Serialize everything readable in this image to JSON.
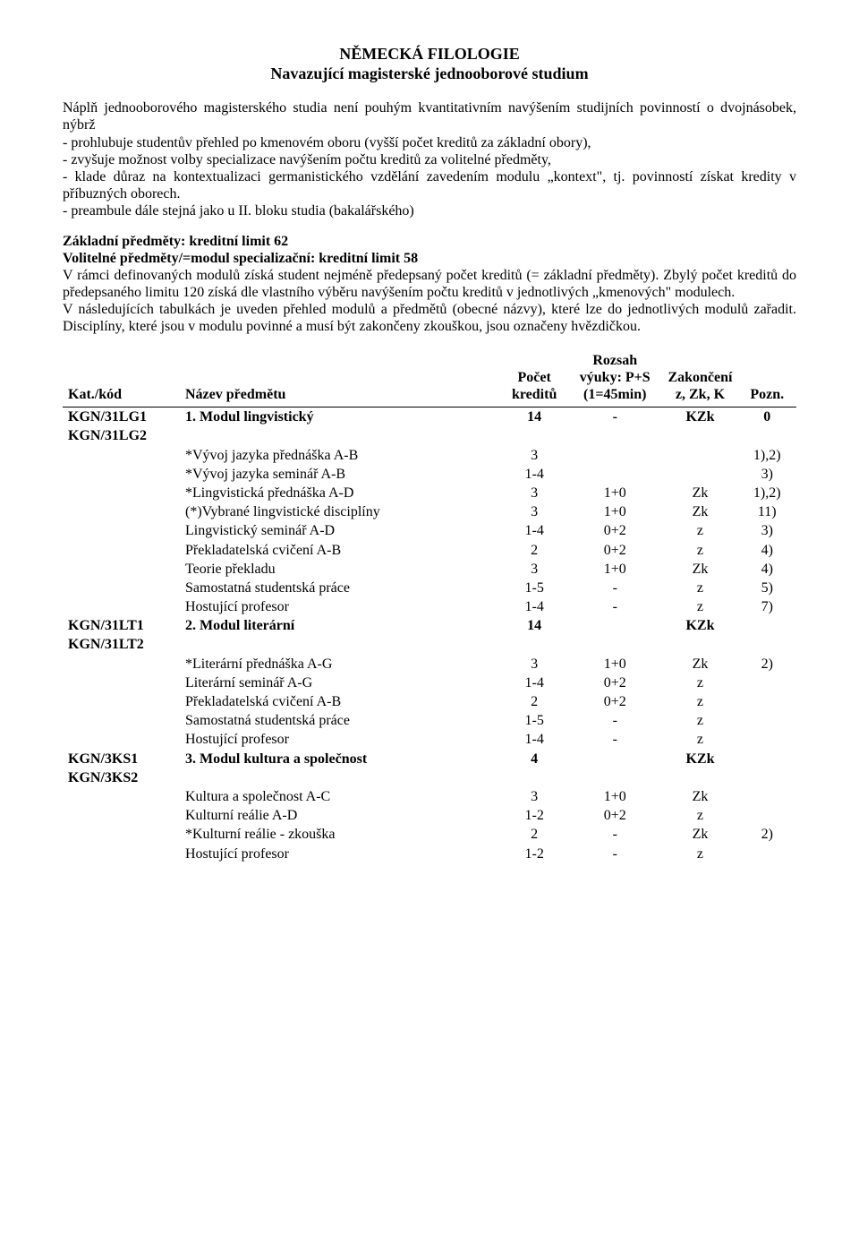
{
  "header": {
    "title": "NĚMECKÁ FILOLOGIE",
    "subtitle": "Navazující magisterské jednooborové studium"
  },
  "intro": {
    "p1": "Náplň jednooborového magisterského studia není pouhým kvantitativním navýšením studijních povinností o dvojnásobek, nýbrž",
    "b1": "- prohlubuje studentův přehled po kmenovém oboru (vyšší počet kreditů za základní obory),",
    "b2": "- zvyšuje možnost volby specializace navýšením počtu kreditů za volitelné předměty,",
    "b3": "- klade důraz na kontextualizaci germanistického vzdělání zavedením modulu „kontext\", tj. povinností získat kredity v příbuzných oborech.",
    "b4": "- preambule dále stejná jako u II. bloku studia (bakalářského)"
  },
  "limits": {
    "h1": "Základní předměty: kreditní limit 62",
    "h2": "Volitelné předměty/=modul specializační: kreditní limit 58",
    "p1": "V rámci definovaných modulů získá student nejméně předepsaný počet kreditů (= základní předměty). Zbylý počet kreditů do předepsaného limitu 120 získá dle vlastního výběru navýšením počtu kreditů v jednotlivých „kmenových\" modulech.",
    "p2": "V následujících tabulkách je uveden přehled modulů a předmětů (obecné názvy), které lze do jednotlivých modulů zařadit. Disciplíny, které jsou v modulu povinné a musí být zakončeny zkouškou, jsou označeny hvězdičkou."
  },
  "table": {
    "headers": {
      "code": "Kat./kód",
      "name": "Název předmětu",
      "credits": "Počet kreditů",
      "range": "Rozsah výuky: P+S (1=45min)",
      "end": "Zakončení z, Zk, K",
      "note": "Pozn."
    },
    "modules": [
      {
        "code1": "KGN/31LG1",
        "code2": "KGN/31LG2",
        "name": "1. Modul lingvistický",
        "credits": "14",
        "range": "-",
        "end": "KZk",
        "note": "0",
        "rows": [
          {
            "name": "*Vývoj jazyka přednáška A-B",
            "credits": "3",
            "range": "",
            "end": "",
            "note": "1),2)"
          },
          {
            "name": "*Vývoj jazyka seminář A-B",
            "credits": "1-4",
            "range": "",
            "end": "",
            "note": "3)"
          },
          {
            "name": "*Lingvistická přednáška A-D",
            "credits": "3",
            "range": "1+0",
            "end": "Zk",
            "note": "1),2)"
          },
          {
            "name": "(*)Vybrané lingvistické disciplíny",
            "credits": "3",
            "range": "1+0",
            "end": "Zk",
            "note": "11)"
          },
          {
            "name": "Lingvistický seminář A-D",
            "credits": "1-4",
            "range": "0+2",
            "end": "z",
            "note": "3)"
          },
          {
            "name": "Překladatelská cvičení A-B",
            "credits": "2",
            "range": "0+2",
            "end": "z",
            "note": "4)"
          },
          {
            "name": "Teorie překladu",
            "credits": "3",
            "range": "1+0",
            "end": "Zk",
            "note": "4)"
          },
          {
            "name": "Samostatná studentská práce",
            "credits": "1-5",
            "range": "-",
            "end": "z",
            "note": "5)"
          },
          {
            "name": "Hostující profesor",
            "credits": "1-4",
            "range": "-",
            "end": "z",
            "note": "7)"
          }
        ]
      },
      {
        "code1": "KGN/31LT1",
        "code2": "KGN/31LT2",
        "name": "2. Modul literární",
        "credits": "14",
        "range": "",
        "end": "KZk",
        "note": "",
        "rows": [
          {
            "name": "*Literární přednáška A-G",
            "credits": "3",
            "range": "1+0",
            "end": "Zk",
            "note": "2)"
          },
          {
            "name": "Literární seminář A-G",
            "credits": "1-4",
            "range": "0+2",
            "end": "z",
            "note": ""
          },
          {
            "name": "Překladatelská cvičení A-B",
            "credits": "2",
            "range": "0+2",
            "end": "z",
            "note": ""
          },
          {
            "name": "Samostatná studentská práce",
            "credits": "1-5",
            "range": "-",
            "end": "z",
            "note": ""
          },
          {
            "name": "Hostující profesor",
            "credits": "1-4",
            "range": "-",
            "end": "z",
            "note": ""
          }
        ]
      },
      {
        "code1": "KGN/3KS1",
        "code2": "KGN/3KS2",
        "name": "3. Modul kultura a společnost",
        "credits": "4",
        "range": "",
        "end": "KZk",
        "note": "",
        "rows": [
          {
            "name": "Kultura a společnost A-C",
            "credits": "3",
            "range": "1+0",
            "end": "Zk",
            "note": ""
          },
          {
            "name": "Kulturní reálie A-D",
            "credits": "1-2",
            "range": "0+2",
            "end": "z",
            "note": ""
          },
          {
            "name": "*Kulturní reálie - zkouška",
            "credits": "2",
            "range": "-",
            "end": "Zk",
            "note": "2)"
          },
          {
            "name": "Hostující profesor",
            "credits": "1-2",
            "range": "-",
            "end": "z",
            "note": ""
          }
        ]
      }
    ]
  }
}
